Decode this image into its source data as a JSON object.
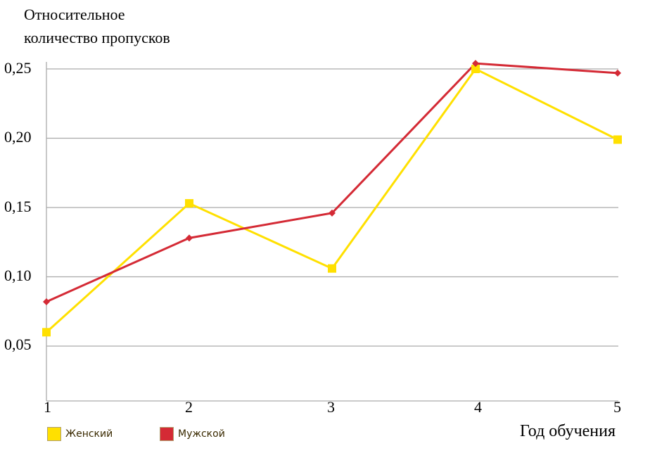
{
  "chart_data": {
    "type": "line",
    "title": "",
    "ylabel_line1": "Относительное",
    "ylabel_line2": "количество пропусков",
    "xlabel": "Год обучения",
    "x": [
      "1",
      "2",
      "3",
      "4",
      "5"
    ],
    "yticks": [
      "0,25",
      "0,20",
      "0,15",
      "0,10",
      "0,05"
    ],
    "ylim": [
      0.01,
      0.26
    ],
    "grid": true,
    "legend_position": "bottom-left",
    "series": [
      {
        "name": "Женский",
        "color": "#FFE000",
        "marker": "square",
        "values": [
          0.06,
          0.153,
          0.106,
          0.25,
          0.199
        ]
      },
      {
        "name": "Мужской",
        "color": "#D42A35",
        "marker": "diamond",
        "values": [
          0.082,
          0.128,
          0.146,
          0.254,
          0.247
        ]
      }
    ]
  }
}
